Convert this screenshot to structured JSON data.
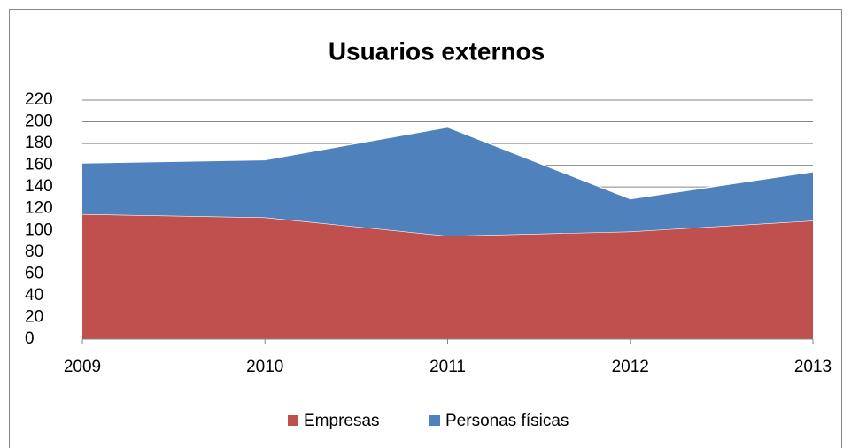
{
  "chart_data": {
    "type": "stacked_area",
    "title": "Usuarios externos",
    "categories": [
      "2009",
      "2010",
      "2011",
      "2012",
      "2013"
    ],
    "series": [
      {
        "name": "Empresas",
        "color": "#c0504d",
        "values": [
          115,
          112,
          95,
          99,
          109
        ]
      },
      {
        "name": "Personas físicas",
        "color": "#4f81bd",
        "values": [
          47,
          53,
          100,
          30,
          45
        ]
      }
    ],
    "ylim": [
      0,
      220
    ],
    "yticks": [
      0,
      20,
      40,
      60,
      80,
      100,
      120,
      140,
      160,
      180,
      200,
      220
    ],
    "grid": true,
    "legend": "bottom"
  }
}
